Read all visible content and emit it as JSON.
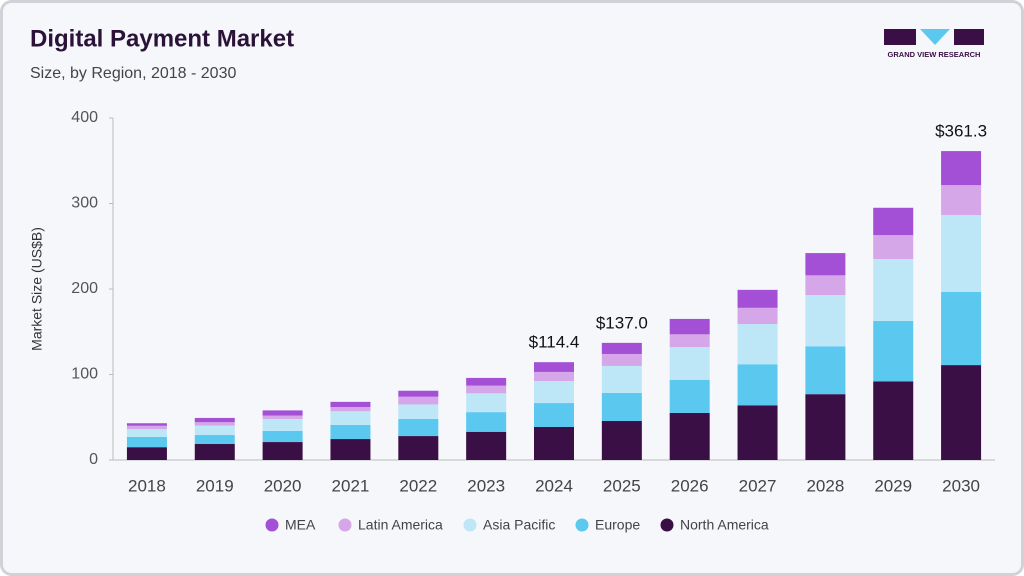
{
  "chart_data": {
    "type": "stacked_bar",
    "title": "Digital Payment Market",
    "subtitle": "Size, by Region, 2018 - 2030",
    "logo_text": "GRAND VIEW RESEARCH",
    "y_label": "Market Size (US$B)",
    "categories": [
      "2018",
      "2019",
      "2020",
      "2021",
      "2022",
      "2023",
      "2024",
      "2025",
      "2026",
      "2027",
      "2028",
      "2029",
      "2030"
    ],
    "series": [
      {
        "name": "North America",
        "color": "#3a0f45",
        "values": [
          15,
          18.7,
          21,
          24.5,
          28,
          33,
          38.6,
          45.6,
          55,
          64,
          77,
          92,
          111
        ]
      },
      {
        "name": "Europe",
        "color": "#5bc8f0",
        "values": [
          12,
          10.5,
          13,
          16.5,
          20,
          23,
          28,
          32.8,
          38.6,
          48,
          56,
          70.6,
          85.5
        ]
      },
      {
        "name": "Asia Pacific",
        "color": "#bde7f7",
        "values": [
          9,
          11,
          14,
          16,
          17,
          22,
          25.8,
          31.6,
          38.4,
          47,
          60,
          72.4,
          90
        ]
      },
      {
        "name": "Latin America",
        "color": "#d5a6e8",
        "values": [
          4,
          4,
          4,
          5,
          9,
          9,
          10.6,
          14,
          15,
          19,
          23,
          28,
          35
        ]
      },
      {
        "name": "MEA",
        "color": "#a34fd6",
        "values": [
          3,
          5,
          6,
          6,
          7,
          9,
          11.4,
          13,
          18,
          21,
          26,
          32,
          39.8
        ]
      }
    ],
    "annotations": [
      {
        "x": "2024",
        "value": 114.4,
        "label": "$114.4"
      },
      {
        "x": "2025",
        "value": 137.0,
        "label": "$137.0"
      },
      {
        "x": "2030",
        "value": 361.3,
        "label": "$361.3"
      }
    ],
    "ylim": [
      0,
      400
    ],
    "yticks": [
      0,
      100,
      200,
      300,
      400
    ],
    "grid": false
  }
}
